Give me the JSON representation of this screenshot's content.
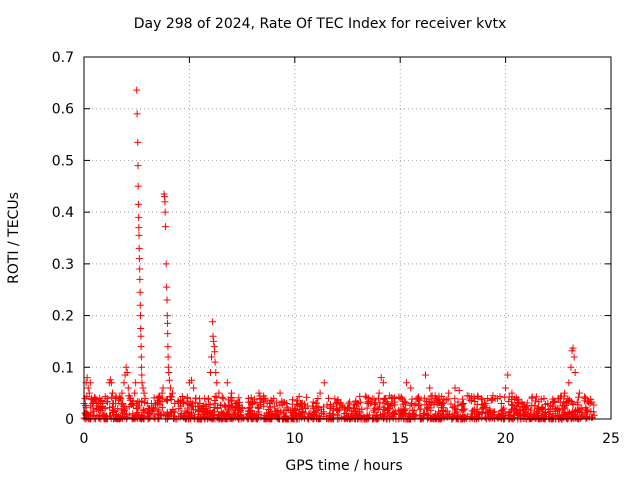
{
  "chart_data": {
    "type": "scatter",
    "title": "Day 298 of 2024, Rate Of TEC Index for receiver kvtx",
    "xlabel": "GPS time / hours",
    "ylabel": "ROTI / TECUs",
    "xlim": [
      0,
      25
    ],
    "ylim": [
      0,
      0.7
    ],
    "xticks": [
      "0",
      "5",
      "10",
      "15",
      "20",
      "25"
    ],
    "yticks": [
      "0",
      "0.1",
      "0.2",
      "0.3",
      "0.4",
      "0.5",
      "0.6",
      "0.7"
    ],
    "grid": true,
    "marker": "+",
    "color": "#ff0000",
    "series": [
      {
        "points": [
          [
            0.0,
            0.03
          ],
          [
            0.05,
            0.04
          ],
          [
            0.1,
            0.07
          ],
          [
            0.15,
            0.08
          ],
          [
            0.2,
            0.06
          ],
          [
            0.25,
            0.05
          ],
          [
            0.3,
            0.07
          ],
          [
            0.35,
            0.04
          ],
          [
            0.4,
            0.03
          ],
          [
            0.5,
            0.04
          ],
          [
            0.6,
            0.02
          ],
          [
            0.7,
            0.03
          ],
          [
            0.8,
            0.02
          ],
          [
            0.9,
            0.03
          ],
          [
            1.0,
            0.02
          ],
          [
            1.1,
            0.04
          ],
          [
            1.2,
            0.07
          ],
          [
            1.25,
            0.076
          ],
          [
            1.3,
            0.07
          ],
          [
            1.35,
            0.05
          ],
          [
            1.4,
            0.03
          ],
          [
            1.5,
            0.03
          ],
          [
            1.6,
            0.02
          ],
          [
            1.7,
            0.04
          ],
          [
            1.8,
            0.05
          ],
          [
            1.9,
            0.07
          ],
          [
            1.95,
            0.085
          ],
          [
            2.0,
            0.1
          ],
          [
            2.05,
            0.09
          ],
          [
            2.1,
            0.06
          ],
          [
            2.2,
            0.04
          ],
          [
            2.3,
            0.03
          ],
          [
            2.4,
            0.05
          ],
          [
            2.45,
            0.07
          ],
          [
            2.5,
            0.636
          ],
          [
            2.52,
            0.59
          ],
          [
            2.55,
            0.535
          ],
          [
            2.56,
            0.49
          ],
          [
            2.57,
            0.45
          ],
          [
            2.58,
            0.415
          ],
          [
            2.59,
            0.39
          ],
          [
            2.6,
            0.37
          ],
          [
            2.61,
            0.355
          ],
          [
            2.62,
            0.33
          ],
          [
            2.63,
            0.31
          ],
          [
            2.64,
            0.29
          ],
          [
            2.65,
            0.27
          ],
          [
            2.66,
            0.245
          ],
          [
            2.67,
            0.22
          ],
          [
            2.68,
            0.2
          ],
          [
            2.69,
            0.175
          ],
          [
            2.7,
            0.16
          ],
          [
            2.71,
            0.14
          ],
          [
            2.72,
            0.12
          ],
          [
            2.73,
            0.1
          ],
          [
            2.74,
            0.085
          ],
          [
            2.75,
            0.07
          ],
          [
            2.8,
            0.06
          ],
          [
            2.85,
            0.05
          ],
          [
            2.9,
            0.04
          ],
          [
            3.0,
            0.03
          ],
          [
            3.1,
            0.02
          ],
          [
            3.2,
            0.03
          ],
          [
            3.3,
            0.02
          ],
          [
            3.4,
            0.03
          ],
          [
            3.5,
            0.03
          ],
          [
            3.6,
            0.04
          ],
          [
            3.7,
            0.05
          ],
          [
            3.75,
            0.06
          ],
          [
            3.8,
            0.435
          ],
          [
            3.82,
            0.43
          ],
          [
            3.84,
            0.42
          ],
          [
            3.85,
            0.4
          ],
          [
            3.87,
            0.372
          ],
          [
            3.9,
            0.3
          ],
          [
            3.92,
            0.255
          ],
          [
            3.94,
            0.23
          ],
          [
            3.95,
            0.2
          ],
          [
            3.96,
            0.185
          ],
          [
            3.97,
            0.165
          ],
          [
            3.98,
            0.14
          ],
          [
            3.99,
            0.12
          ],
          [
            4.0,
            0.1
          ],
          [
            4.02,
            0.09
          ],
          [
            4.05,
            0.075
          ],
          [
            4.1,
            0.06
          ],
          [
            4.2,
            0.05
          ],
          [
            4.3,
            0.03
          ],
          [
            4.5,
            0.02
          ],
          [
            4.7,
            0.03
          ],
          [
            4.9,
            0.04
          ],
          [
            5.0,
            0.07
          ],
          [
            5.1,
            0.075
          ],
          [
            5.2,
            0.06
          ],
          [
            5.3,
            0.04
          ],
          [
            5.5,
            0.03
          ],
          [
            5.7,
            0.02
          ],
          [
            5.9,
            0.04
          ],
          [
            6.0,
            0.09
          ],
          [
            6.05,
            0.12
          ],
          [
            6.1,
            0.188
          ],
          [
            6.12,
            0.16
          ],
          [
            6.15,
            0.15
          ],
          [
            6.18,
            0.14
          ],
          [
            6.2,
            0.13
          ],
          [
            6.22,
            0.11
          ],
          [
            6.25,
            0.09
          ],
          [
            6.3,
            0.07
          ],
          [
            6.4,
            0.05
          ],
          [
            6.6,
            0.04
          ],
          [
            6.8,
            0.07
          ],
          [
            7.0,
            0.05
          ],
          [
            7.2,
            0.03
          ],
          [
            7.5,
            0.02
          ],
          [
            7.8,
            0.04
          ],
          [
            8.0,
            0.03
          ],
          [
            8.3,
            0.05
          ],
          [
            8.5,
            0.04
          ],
          [
            8.8,
            0.03
          ],
          [
            9.0,
            0.04
          ],
          [
            9.3,
            0.05
          ],
          [
            9.6,
            0.03
          ],
          [
            10.0,
            0.02
          ],
          [
            10.5,
            0.02
          ],
          [
            11.0,
            0.03
          ],
          [
            11.2,
            0.05
          ],
          [
            11.4,
            0.07
          ],
          [
            11.6,
            0.04
          ],
          [
            12.0,
            0.02
          ],
          [
            12.5,
            0.02
          ],
          [
            13.0,
            0.03
          ],
          [
            13.5,
            0.03
          ],
          [
            14.0,
            0.05
          ],
          [
            14.1,
            0.08
          ],
          [
            14.2,
            0.07
          ],
          [
            14.3,
            0.04
          ],
          [
            14.6,
            0.03
          ],
          [
            15.0,
            0.04
          ],
          [
            15.3,
            0.07
          ],
          [
            15.5,
            0.06
          ],
          [
            15.8,
            0.04
          ],
          [
            16.2,
            0.085
          ],
          [
            16.4,
            0.06
          ],
          [
            16.7,
            0.04
          ],
          [
            17.0,
            0.03
          ],
          [
            17.3,
            0.05
          ],
          [
            17.6,
            0.06
          ],
          [
            17.8,
            0.055
          ],
          [
            18.0,
            0.03
          ],
          [
            18.5,
            0.04
          ],
          [
            19.0,
            0.03
          ],
          [
            19.4,
            0.045
          ],
          [
            19.8,
            0.03
          ],
          [
            20.0,
            0.06
          ],
          [
            20.1,
            0.085
          ],
          [
            20.3,
            0.05
          ],
          [
            20.6,
            0.03
          ],
          [
            21.0,
            0.025
          ],
          [
            21.5,
            0.02
          ],
          [
            22.0,
            0.03
          ],
          [
            22.5,
            0.04
          ],
          [
            22.8,
            0.05
          ],
          [
            23.0,
            0.07
          ],
          [
            23.1,
            0.1
          ],
          [
            23.15,
            0.132
          ],
          [
            23.2,
            0.137
          ],
          [
            23.25,
            0.12
          ],
          [
            23.3,
            0.09
          ],
          [
            23.5,
            0.05
          ],
          [
            23.8,
            0.04
          ],
          [
            24.0,
            0.03
          ]
        ]
      }
    ]
  }
}
